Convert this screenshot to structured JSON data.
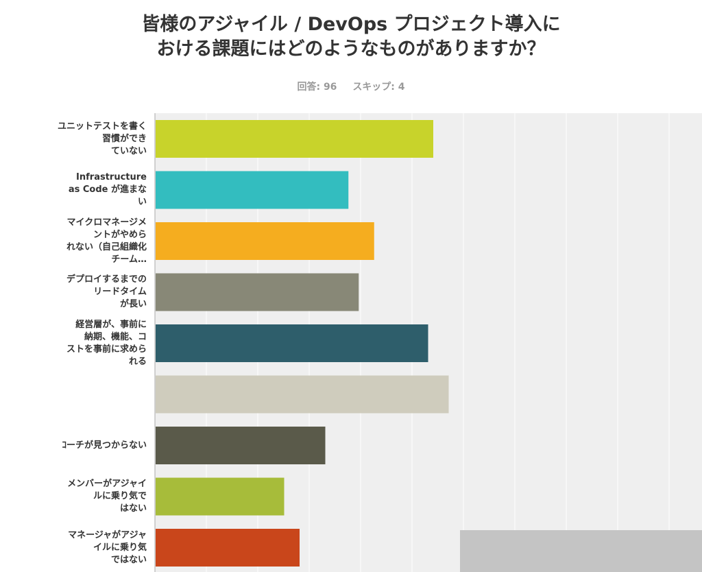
{
  "title_lines": [
    "皆様のアジャイル / DevOps プロジェクト導入に",
    "おける課題にはどのようなものがありますか？"
  ],
  "answered": "回答: 96",
  "skipped": "スキップ: 4",
  "chart_data": {
    "type": "bar",
    "orientation": "horizontal",
    "title": "皆様のアジャイル / DevOps プロジェクト導入におけるる課題にはどのようなものがありますか？",
    "categories": [
      "ユニットテストを書く\n習慣ができ\nていない",
      "Infrastructure\nas Code が進まな\nい",
      "マイクロマネージメ\nントがやめら\nれない（自己組織化\nチーム…",
      "デプロイするまでの\nリードタイム\nが長い",
      "経営層が、事前に\n納期、機能、コ\nストを事前に求めら\nれる",
      "",
      "ｺーチが見つからない",
      "メンバーがアジャイ\nルに乗り気で\nはない",
      "マネージャがアジャ\nイルに乗り気\nではない"
    ],
    "values": [
      54,
      37.5,
      42.5,
      39.5,
      53,
      57,
      33,
      25,
      28
    ],
    "colors": [
      "#c8d32b",
      "#33bdbf",
      "#f5ad1f",
      "#888877",
      "#2e5e6b",
      "#cfccbd",
      "#5a5a4a",
      "#a7bc3a",
      "#c9461b"
    ],
    "xlim": [
      0,
      100
    ],
    "grid": true
  }
}
